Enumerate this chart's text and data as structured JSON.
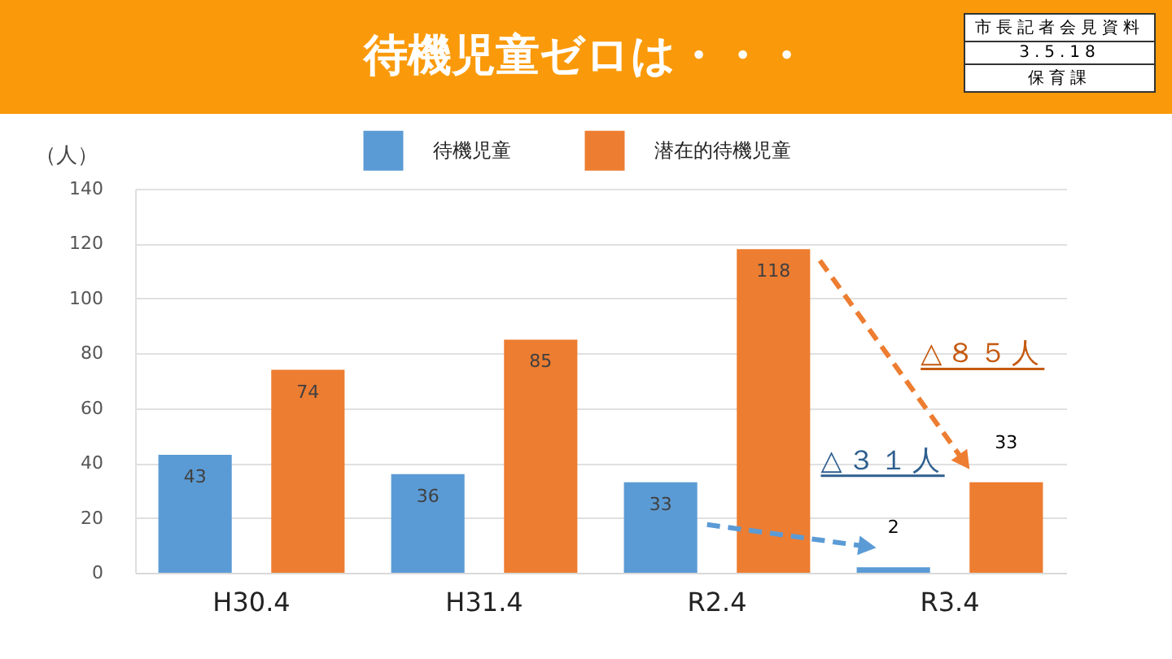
{
  "chart_data": {
    "type": "bar",
    "title": "待機児童ゼロは・・・",
    "ylabel": "（人）",
    "categories": [
      "H30.4",
      "H31.4",
      "R2.4",
      "R3.4"
    ],
    "series": [
      {
        "name": "待機児童",
        "color": "#5b9bd5",
        "values": [
          43,
          36,
          33,
          2
        ]
      },
      {
        "name": "潜在的待機児童",
        "color": "#ed7d31",
        "values": [
          74,
          85,
          118,
          33
        ]
      }
    ],
    "ylim": [
      0,
      140
    ],
    "yticks": [
      0,
      20,
      40,
      60,
      80,
      100,
      120,
      140
    ],
    "grid": "y",
    "legend": "top",
    "data_labels": true,
    "annotations": [
      "△３１人",
      "△８５人",
      "市長記者会見資料",
      "3.5.18",
      "保育課"
    ]
  }
}
